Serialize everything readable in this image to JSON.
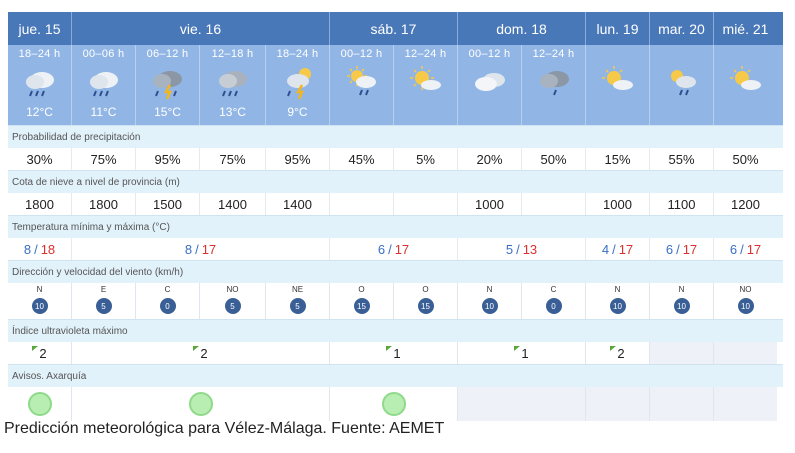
{
  "days": [
    "jue. 15",
    "vie. 16",
    "sáb. 17",
    "dom. 18",
    "lun. 19",
    "mar. 20",
    "mié. 21"
  ],
  "periods": [
    {
      "period": "18–24 h",
      "temp": "12°C",
      "icon": "rain-icon"
    },
    {
      "period": "00–06 h",
      "temp": "11°C",
      "icon": "rain-icon"
    },
    {
      "period": "06–12 h",
      "temp": "15°C",
      "icon": "storm-icon"
    },
    {
      "period": "12–18 h",
      "temp": "13°C",
      "icon": "rain-icon"
    },
    {
      "period": "18–24 h",
      "temp": "9°C",
      "icon": "storm-icon"
    },
    {
      "period": "00–12 h",
      "temp": "",
      "icon": "sun-cloud-rain-icon"
    },
    {
      "period": "12–24 h",
      "temp": "",
      "icon": "sun-cloud-icon"
    },
    {
      "period": "00–12 h",
      "temp": "",
      "icon": "clouds-icon"
    },
    {
      "period": "12–24 h",
      "temp": "",
      "icon": "rain-cloud-icon"
    },
    {
      "period": "",
      "temp": "",
      "icon": "sun-cloud-icon"
    },
    {
      "period": "",
      "temp": "",
      "icon": "sun-cloud-rain-icon"
    },
    {
      "period": "",
      "temp": "",
      "icon": "sun-cloud-icon"
    }
  ],
  "labels": {
    "precip": "Probabilidad de precipitación",
    "snow": "Cota de nieve a nivel de provincia (m)",
    "temp": "Temperatura mínima y máxima (°C)",
    "wind": "Dirección y velocidad del viento (km/h)",
    "uv": "Índice ultravioleta máximo",
    "avisos": "Avisos. Axarquía"
  },
  "precip": [
    "30%",
    "75%",
    "95%",
    "75%",
    "95%",
    "45%",
    "5%",
    "20%",
    "50%",
    "15%",
    "55%",
    "50%"
  ],
  "snow": [
    "1800",
    "1800",
    "1500",
    "1400",
    "1400",
    "",
    "",
    "1000",
    "",
    "1000",
    "1100",
    "1200"
  ],
  "temps": [
    {
      "min": "8",
      "max": "18"
    },
    {
      "min": "8",
      "max": "17"
    },
    {
      "min": "6",
      "max": "17"
    },
    {
      "min": "5",
      "max": "13"
    },
    {
      "min": "4",
      "max": "17"
    },
    {
      "min": "6",
      "max": "17"
    },
    {
      "min": "6",
      "max": "17"
    }
  ],
  "wind": [
    {
      "dir": "N",
      "speed": "10"
    },
    {
      "dir": "E",
      "speed": "5"
    },
    {
      "dir": "C",
      "speed": "0"
    },
    {
      "dir": "NO",
      "speed": "5"
    },
    {
      "dir": "NE",
      "speed": "5"
    },
    {
      "dir": "O",
      "speed": "15"
    },
    {
      "dir": "O",
      "speed": "15"
    },
    {
      "dir": "N",
      "speed": "10"
    },
    {
      "dir": "C",
      "speed": "0"
    },
    {
      "dir": "N",
      "speed": "10"
    },
    {
      "dir": "N",
      "speed": "10"
    },
    {
      "dir": "NO",
      "speed": "10"
    }
  ],
  "uv": [
    "2",
    "2",
    "1",
    "1",
    "2"
  ],
  "colors": {
    "header": "#4978b9",
    "iconRow": "#91b6e5",
    "labelRow": "#e2f2fa",
    "tmax": "#d93030",
    "tmin": "#3a6fc4",
    "avisoGreen": "#b9eeb2"
  },
  "caption": "Predicción meteorológica para Vélez-Málaga. Fuente: AEMET"
}
